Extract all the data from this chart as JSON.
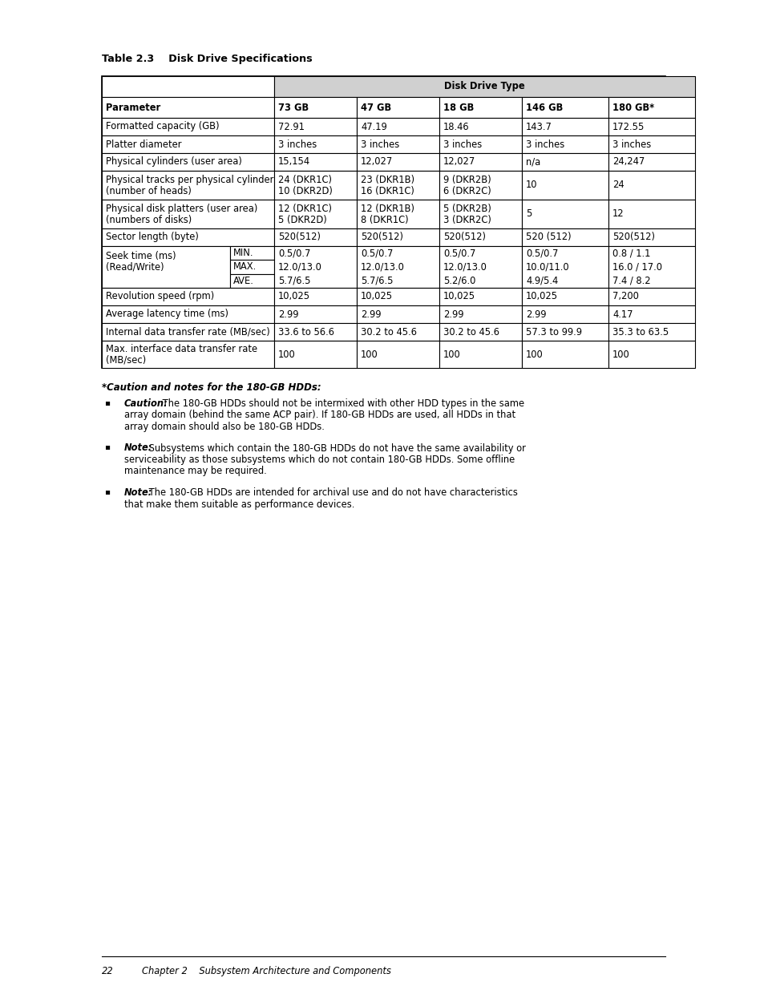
{
  "title": "Table 2.3    Disk Drive Specifications",
  "table_header_row2": [
    "Parameter",
    "73 GB",
    "47 GB",
    "18 GB",
    "146 GB",
    "180 GB*"
  ],
  "table_rows": [
    [
      "Formatted capacity (GB)",
      "72.91",
      "47.19",
      "18.46",
      "143.7",
      "172.55"
    ],
    [
      "Platter diameter",
      "3 inches",
      "3 inches",
      "3 inches",
      "3 inches",
      "3 inches"
    ],
    [
      "Physical cylinders (user area)",
      "15,154",
      "12,027",
      "12,027",
      "n/a",
      "24,247"
    ],
    [
      "Physical tracks per physical cylinder\n(number of heads)",
      "24 (DKR1C)\n10 (DKR2D)",
      "23 (DKR1B)\n16 (DKR1C)",
      "9 (DKR2B)\n6 (DKR2C)",
      "10",
      "24"
    ],
    [
      "Physical disk platters (user area)\n(numbers of disks)",
      "12 (DKR1C)\n5 (DKR2D)",
      "12 (DKR1B)\n8 (DKR1C)",
      "5 (DKR2B)\n3 (DKR2C)",
      "5",
      "12"
    ],
    [
      "Sector length (byte)",
      "520(512)",
      "520(512)",
      "520(512)",
      "520 (512)",
      "520(512)"
    ],
    [
      "seek_time_label",
      "seek_time_data"
    ],
    [
      "Revolution speed (rpm)",
      "10,025",
      "10,025",
      "10,025",
      "10,025",
      "7,200"
    ],
    [
      "Average latency time (ms)",
      "2.99",
      "2.99",
      "2.99",
      "2.99",
      "4.17"
    ],
    [
      "Internal data transfer rate (MB/sec)",
      "33.6 to 56.6",
      "30.2 to 45.6",
      "30.2 to 45.6",
      "57.3 to 99.9",
      "35.3 to 63.5"
    ],
    [
      "Max. interface data transfer rate\n(MB/sec)",
      "100",
      "100",
      "100",
      "100",
      "100"
    ]
  ],
  "seek_time_sub": [
    "MIN.",
    "MAX.",
    "AVE."
  ],
  "seek_data": [
    [
      "0.5/0.7",
      "12.0/13.0",
      "5.7/6.5"
    ],
    [
      "0.5/0.7",
      "12.0/13.0",
      "5.7/6.5"
    ],
    [
      "0.5/0.7",
      "12.0/13.0",
      "5.2/6.0"
    ],
    [
      "0.5/0.7",
      "10.0/11.0",
      "4.9/5.4"
    ],
    [
      "0.8 / 1.1",
      "16.0 / 17.0",
      "7.4 / 8.2"
    ]
  ],
  "notes_header": "*Caution and notes for the 180-GB HDDs:",
  "notes": [
    {
      "bold": "Caution:",
      "rest": " The 180-GB HDDs should not be intermixed with other HDD types in the same array domain (behind the same ACP pair). If 180-GB HDDs are used, all HDDs in that array domain should also be 180-GB HDDs."
    },
    {
      "bold": "Note:",
      "rest": " Subsystems which contain the 180-GB HDDs do not have the same availability or serviceability as those subsystems which do not contain 180-GB HDDs. Some offline maintenance may be required."
    },
    {
      "bold": "Note:",
      "rest": " The 180-GB HDDs are intended for archival use and do not have characteristics that make them suitable as performance devices."
    }
  ],
  "bg_color": "#ffffff",
  "text_color": "#000000"
}
